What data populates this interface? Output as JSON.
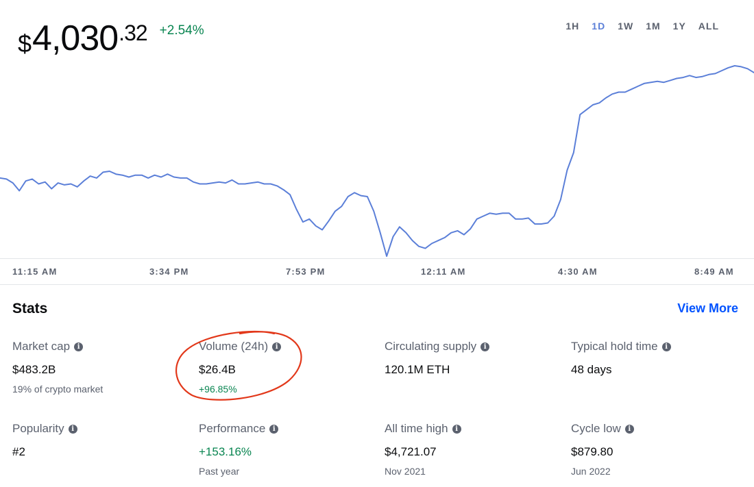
{
  "price": {
    "dollar": "$",
    "main": "4,030",
    "cents": ".32",
    "change": "+2.54%"
  },
  "ranges": [
    "1H",
    "1D",
    "1W",
    "1M",
    "1Y",
    "ALL"
  ],
  "active_range": "1D",
  "colors": {
    "line": "#5b7fd8",
    "positive": "#098551",
    "link": "#0052ff",
    "annotation": "#e2381a"
  },
  "chart_data": {
    "type": "line",
    "x_labels": [
      "11:15 AM",
      "3:34 PM",
      "7:53 PM",
      "12:11 AM",
      "4:30 AM",
      "8:49 AM"
    ],
    "values": [
      3922,
      3921,
      3917,
      3909,
      3919,
      3921,
      3916,
      3918,
      3911,
      3917,
      3915,
      3916,
      3913,
      3919,
      3924,
      3922,
      3928,
      3929,
      3926,
      3925,
      3923,
      3925,
      3925,
      3922,
      3925,
      3923,
      3926,
      3923,
      3922,
      3922,
      3918,
      3916,
      3916,
      3917,
      3918,
      3917,
      3920,
      3916,
      3916,
      3917,
      3918,
      3916,
      3916,
      3914,
      3910,
      3905,
      3890,
      3877,
      3880,
      3873,
      3869,
      3878,
      3888,
      3893,
      3903,
      3907,
      3904,
      3903,
      3888,
      3866,
      3842,
      3862,
      3872,
      3866,
      3858,
      3852,
      3850,
      3855,
      3858,
      3861,
      3866,
      3868,
      3864,
      3870,
      3880,
      3883,
      3886,
      3885,
      3886,
      3886,
      3880,
      3880,
      3881,
      3875,
      3875,
      3876,
      3883,
      3900,
      3930,
      3948,
      3987,
      3992,
      3997,
      3999,
      4004,
      4008,
      4010,
      4010,
      4013,
      4016,
      4019,
      4020,
      4021,
      4020,
      4022,
      4024,
      4025,
      4027,
      4025,
      4026,
      4028,
      4029,
      4032,
      4035,
      4037,
      4036,
      4034,
      4030
    ]
  },
  "stats": {
    "title": "Stats",
    "view_more": "View More",
    "items": [
      {
        "label": "Market cap",
        "value": "$483.2B",
        "sub": "19% of crypto market",
        "value_green": false,
        "sub_green": false
      },
      {
        "label": "Volume (24h)",
        "value": "$26.4B",
        "sub": "+96.85%",
        "value_green": false,
        "sub_green": true
      },
      {
        "label": "Circulating supply",
        "value": "120.1M ETH",
        "sub": "",
        "value_green": false,
        "sub_green": false
      },
      {
        "label": "Typical hold time",
        "value": "48 days",
        "sub": "",
        "value_green": false,
        "sub_green": false
      },
      {
        "label": "Popularity",
        "value": "#2",
        "sub": "",
        "value_green": false,
        "sub_green": false
      },
      {
        "label": "Performance",
        "value": "+153.16%",
        "sub": "Past year",
        "value_green": true,
        "sub_green": false
      },
      {
        "label": "All time high",
        "value": "$4,721.07",
        "sub": "Nov 2021",
        "value_green": false,
        "sub_green": false
      },
      {
        "label": "Cycle low",
        "value": "$879.80",
        "sub": "Jun 2022",
        "value_green": false,
        "sub_green": false
      }
    ]
  }
}
